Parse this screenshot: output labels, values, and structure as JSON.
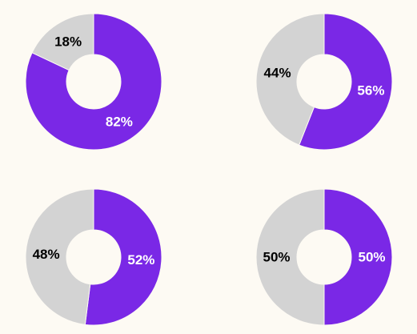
{
  "colors": {
    "background": "#fdfaf3",
    "primary": "#7a28e6",
    "secondary": "#d3d3d3",
    "primary_label": "#ffffff",
    "secondary_label": "#000000"
  },
  "chart_data": [
    {
      "type": "pie",
      "donut": true,
      "slices": [
        {
          "value": 82,
          "label": "82%",
          "color": "#7a28e6"
        },
        {
          "value": 18,
          "label": "18%",
          "color": "#d3d3d3"
        }
      ]
    },
    {
      "type": "pie",
      "donut": true,
      "slices": [
        {
          "value": 56,
          "label": "56%",
          "color": "#7a28e6"
        },
        {
          "value": 44,
          "label": "44%",
          "color": "#d3d3d3"
        }
      ]
    },
    {
      "type": "pie",
      "donut": true,
      "slices": [
        {
          "value": 52,
          "label": "52%",
          "color": "#7a28e6"
        },
        {
          "value": 48,
          "label": "48%",
          "color": "#d3d3d3"
        }
      ]
    },
    {
      "type": "pie",
      "donut": true,
      "slices": [
        {
          "value": 50,
          "label": "50%",
          "color": "#7a28e6"
        },
        {
          "value": 50,
          "label": "50%",
          "color": "#d3d3d3"
        }
      ]
    }
  ]
}
